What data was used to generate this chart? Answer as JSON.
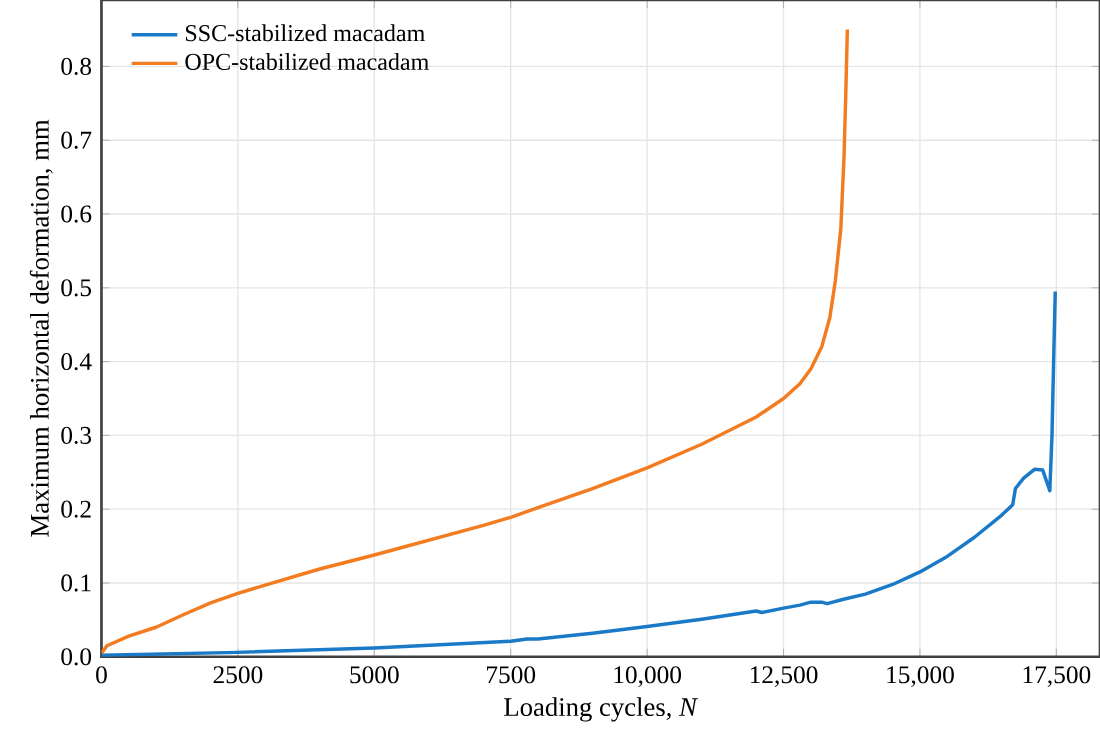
{
  "chart_data": {
    "type": "line",
    "xlabel": "Loading cycles, *N*",
    "ylabel": "Maximum horizontal deformation, mm",
    "xlim": [
      0,
      18300
    ],
    "ylim": [
      0,
      0.89
    ],
    "xticks": [
      0,
      2500,
      5000,
      7500,
      {
        "value": 10000,
        "label": "10,000"
      },
      {
        "value": 12500,
        "label": "12,500"
      },
      {
        "value": 15000,
        "label": "15,000"
      },
      {
        "value": 17500,
        "label": "17,500"
      }
    ],
    "yticks": [
      {
        "value": 0,
        "label": "0.0"
      },
      0.1,
      0.2,
      0.3,
      0.4,
      0.5,
      0.6,
      0.7,
      0.8
    ],
    "grid": true,
    "legend": "top left",
    "marker": "none",
    "line_style": "solid",
    "series": [
      {
        "name": "SSC-stabilized macadam",
        "color": "#1a7ac8",
        "x": [
          0,
          2500,
          5000,
          7500,
          7800,
          8000,
          9000,
          10000,
          11000,
          12000,
          12100,
          12500,
          12800,
          13000,
          13200,
          13300,
          13600,
          14000,
          14500,
          15000,
          15500,
          16000,
          16500,
          16700,
          16750,
          16900,
          17100,
          17250,
          17380,
          17420,
          17450,
          17480
        ],
        "values": [
          0.002,
          0.006,
          0.012,
          0.021,
          0.024,
          0.024,
          0.032,
          0.041,
          0.051,
          0.062,
          0.06,
          0.066,
          0.07,
          0.074,
          0.074,
          0.072,
          0.078,
          0.085,
          0.098,
          0.115,
          0.136,
          0.162,
          0.192,
          0.206,
          0.228,
          0.242,
          0.254,
          0.253,
          0.225,
          0.3,
          0.4,
          0.495
        ]
      },
      {
        "name": "OPC-stabilized macadam",
        "color": "#f47c20",
        "x": [
          0,
          100,
          500,
          1000,
          1500,
          2000,
          2500,
          3000,
          4000,
          5000,
          6000,
          7000,
          7500,
          8000,
          9000,
          10000,
          11000,
          12000,
          12500,
          12800,
          13000,
          13200,
          13350,
          13450,
          13550,
          13610,
          13640,
          13670
        ],
        "values": [
          0.005,
          0.015,
          0.028,
          0.04,
          0.057,
          0.073,
          0.086,
          0.097,
          0.119,
          0.138,
          0.158,
          0.178,
          0.189,
          0.202,
          0.228,
          0.256,
          0.288,
          0.325,
          0.35,
          0.37,
          0.39,
          0.42,
          0.46,
          0.51,
          0.58,
          0.68,
          0.76,
          0.85
        ]
      }
    ]
  }
}
